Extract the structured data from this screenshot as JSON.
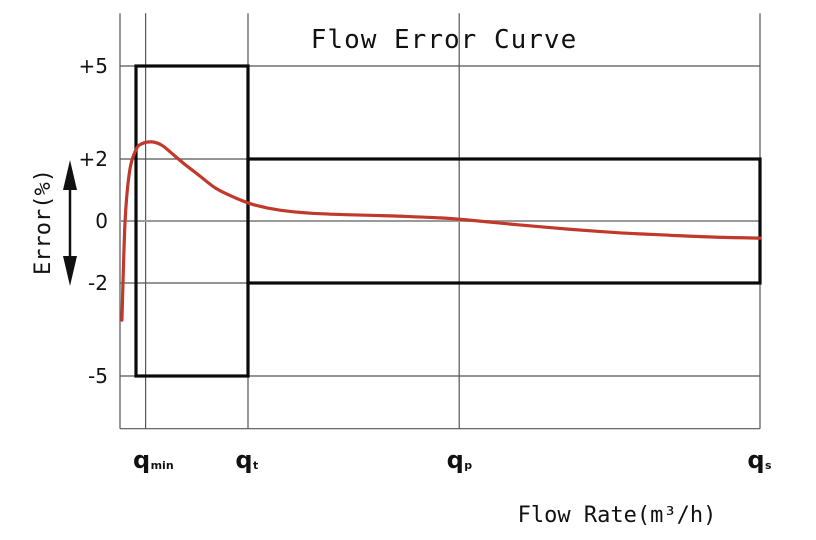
{
  "chart_data": {
    "type": "line",
    "title": "Flow Error Curve",
    "xlabel": "Flow Rate(m³/h)",
    "ylabel": "Error(%)",
    "y_ticks": [
      {
        "label": "+5",
        "value": 5
      },
      {
        "label": "+2",
        "value": 2
      },
      {
        "label": "0",
        "value": 0
      },
      {
        "label": "-2",
        "value": -2
      },
      {
        "label": "-5",
        "value": -5
      }
    ],
    "ylim": [
      -6.7,
      6.7
    ],
    "x_ticks": [
      {
        "main": "q",
        "sub": "min",
        "value": 0.04
      },
      {
        "main": "q",
        "sub": "t",
        "value": 0.2
      },
      {
        "main": "q",
        "sub": "p",
        "value": 0.53
      },
      {
        "main": "q",
        "sub": "s",
        "value": 1.0
      }
    ],
    "xlim": [
      0,
      1.0
    ],
    "error_limits": [
      {
        "x_from": 0.0,
        "x_to": 0.2,
        "upper": 5,
        "lower": -5
      },
      {
        "x_from": 0.2,
        "x_to": 1.0,
        "upper": 2,
        "lower": -2
      }
    ],
    "series": [
      {
        "x": [
          0.003,
          0.008,
          0.015,
          0.025,
          0.035,
          0.05,
          0.065,
          0.08,
          0.1,
          0.125,
          0.15,
          0.18,
          0.21,
          0.25,
          0.3,
          0.36,
          0.43,
          0.5,
          0.55,
          0.62,
          0.7,
          0.78,
          0.86,
          0.93,
          1.0
        ],
        "y": [
          -3.2,
          0.0,
          1.6,
          2.3,
          2.5,
          2.55,
          2.45,
          2.2,
          1.85,
          1.45,
          1.05,
          0.75,
          0.52,
          0.35,
          0.25,
          0.2,
          0.16,
          0.1,
          0.02,
          -0.12,
          -0.26,
          -0.38,
          -0.46,
          -0.52,
          -0.55
        ],
        "color": "#c0392b"
      }
    ],
    "grid": true
  }
}
